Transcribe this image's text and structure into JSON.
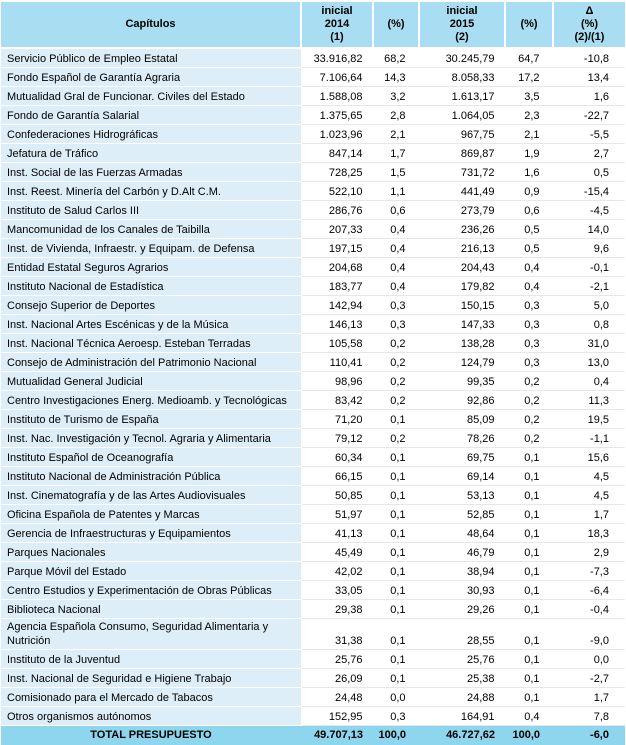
{
  "colors": {
    "header_bg": "#a9def2",
    "name_col_bg": "#ddeef9",
    "total_bg": "#8ed6ee"
  },
  "header": {
    "capitulos": "Capítulos",
    "inicial_2014": "inicial\n2014\n(1)",
    "pct_1": "(%)",
    "inicial_2015": "inicial\n2015\n(2)",
    "pct_2": "(%)",
    "delta": "Δ\n(%)\n(2)/(1)"
  },
  "rows": [
    {
      "name": "Servicio Público de Empleo Estatal",
      "v2014": "33.916,82",
      "p2014": "68,2",
      "v2015": "30.245,79",
      "p2015": "64,7",
      "delta": "-10,8"
    },
    {
      "name": "Fondo Español de Garantía Agraria",
      "v2014": "7.106,64",
      "p2014": "14,3",
      "v2015": "8.058,33",
      "p2015": "17,2",
      "delta": "13,4"
    },
    {
      "name": "Mutualidad Gral de Funcionar. Civiles del Estado",
      "v2014": "1.588,08",
      "p2014": "3,2",
      "v2015": "1.613,17",
      "p2015": "3,5",
      "delta": "1,6"
    },
    {
      "name": "Fondo de Garantía Salarial",
      "v2014": "1.375,65",
      "p2014": "2,8",
      "v2015": "1.064,05",
      "p2015": "2,3",
      "delta": "-22,7"
    },
    {
      "name": "Confederaciones Hidrográficas",
      "v2014": "1.023,96",
      "p2014": "2,1",
      "v2015": "967,75",
      "p2015": "2,1",
      "delta": "-5,5"
    },
    {
      "name": "Jefatura de Tráfico",
      "v2014": "847,14",
      "p2014": "1,7",
      "v2015": "869,87",
      "p2015": "1,9",
      "delta": "2,7"
    },
    {
      "name": "Inst. Social de las Fuerzas Armadas",
      "v2014": "728,25",
      "p2014": "1,5",
      "v2015": "731,72",
      "p2015": "1,6",
      "delta": "0,5"
    },
    {
      "name": "Inst. Reest. Minería del Carbón y D.Alt C.M.",
      "v2014": "522,10",
      "p2014": "1,1",
      "v2015": "441,49",
      "p2015": "0,9",
      "delta": "-15,4"
    },
    {
      "name": "Instituto de Salud Carlos III",
      "v2014": "286,76",
      "p2014": "0,6",
      "v2015": "273,79",
      "p2015": "0,6",
      "delta": "-4,5"
    },
    {
      "name": "Mancomunidad de los Canales de Taibilla",
      "v2014": "207,33",
      "p2014": "0,4",
      "v2015": "236,26",
      "p2015": "0,5",
      "delta": "14,0"
    },
    {
      "name": "Inst. de Vivienda, Infraestr. y Equipam. de Defensa",
      "v2014": "197,15",
      "p2014": "0,4",
      "v2015": "216,13",
      "p2015": "0,5",
      "delta": "9,6"
    },
    {
      "name": "Entidad Estatal Seguros Agrarios",
      "v2014": "204,68",
      "p2014": "0,4",
      "v2015": "204,43",
      "p2015": "0,4",
      "delta": "-0,1"
    },
    {
      "name": "Instituto Nacional de Estadística",
      "v2014": "183,77",
      "p2014": "0,4",
      "v2015": "179,82",
      "p2015": "0,4",
      "delta": "-2,1"
    },
    {
      "name": "Consejo Superior de Deportes",
      "v2014": "142,94",
      "p2014": "0,3",
      "v2015": "150,15",
      "p2015": "0,3",
      "delta": "5,0"
    },
    {
      "name": "Inst. Nacional Artes Escénicas y de la Música",
      "v2014": "146,13",
      "p2014": "0,3",
      "v2015": "147,33",
      "p2015": "0,3",
      "delta": "0,8"
    },
    {
      "name": "Inst. Nacional Técnica Aeroesp. Esteban Terradas",
      "v2014": "105,58",
      "p2014": "0,2",
      "v2015": "138,28",
      "p2015": "0,3",
      "delta": "31,0"
    },
    {
      "name": "Consejo de Administración del Patrimonio Nacional",
      "v2014": "110,41",
      "p2014": "0,2",
      "v2015": "124,79",
      "p2015": "0,3",
      "delta": "13,0"
    },
    {
      "name": "Mutualidad General Judicial",
      "v2014": "98,96",
      "p2014": "0,2",
      "v2015": "99,35",
      "p2015": "0,2",
      "delta": "0,4"
    },
    {
      "name": "Centro Investigaciones Energ. Medioamb. y Tecnológicas",
      "v2014": "83,42",
      "p2014": "0,2",
      "v2015": "92,86",
      "p2015": "0,2",
      "delta": "11,3"
    },
    {
      "name": "Instituto de Turismo de España",
      "v2014": "71,20",
      "p2014": "0,1",
      "v2015": "85,09",
      "p2015": "0,2",
      "delta": "19,5"
    },
    {
      "name": "Inst. Nac. Investigación y Tecnol. Agraria y Alimentaria",
      "v2014": "79,12",
      "p2014": "0,2",
      "v2015": "78,26",
      "p2015": "0,2",
      "delta": "-1,1"
    },
    {
      "name": "Instituto Español de Oceanografía",
      "v2014": "60,34",
      "p2014": "0,1",
      "v2015": "69,75",
      "p2015": "0,1",
      "delta": "15,6"
    },
    {
      "name": "Instituto Nacional de Administración Pública",
      "v2014": "66,15",
      "p2014": "0,1",
      "v2015": "69,14",
      "p2015": "0,1",
      "delta": "4,5"
    },
    {
      "name": "Inst. Cinematografía y de las Artes Audiovisuales",
      "v2014": "50,85",
      "p2014": "0,1",
      "v2015": "53,13",
      "p2015": "0,1",
      "delta": "4,5"
    },
    {
      "name": "Oficina Española de Patentes y Marcas",
      "v2014": "51,97",
      "p2014": "0,1",
      "v2015": "52,85",
      "p2015": "0,1",
      "delta": "1,7"
    },
    {
      "name": "Gerencia de Infraestructuras y Equipamientos",
      "v2014": "41,13",
      "p2014": "0,1",
      "v2015": "48,64",
      "p2015": "0,1",
      "delta": "18,3"
    },
    {
      "name": "Parques Nacionales",
      "v2014": "45,49",
      "p2014": "0,1",
      "v2015": "46,79",
      "p2015": "0,1",
      "delta": "2,9"
    },
    {
      "name": "Parque Móvil del Estado",
      "v2014": "42,02",
      "p2014": "0,1",
      "v2015": "38,94",
      "p2015": "0,1",
      "delta": "-7,3"
    },
    {
      "name": "Centro Estudios y Experimentación de Obras Públicas",
      "v2014": "33,05",
      "p2014": "0,1",
      "v2015": "30,93",
      "p2015": "0,1",
      "delta": "-6,4"
    },
    {
      "name": "Biblioteca Nacional",
      "v2014": "29,38",
      "p2014": "0,1",
      "v2015": "29,26",
      "p2015": "0,1",
      "delta": "-0,4"
    },
    {
      "name": "Agencia Española Consumo, Seguridad Alimentaria y Nutrición",
      "v2014": "31,38",
      "p2014": "0,1",
      "v2015": "28,55",
      "p2015": "0,1",
      "delta": "-9,0"
    },
    {
      "name": "Instituto de la Juventud",
      "v2014": "25,76",
      "p2014": "0,1",
      "v2015": "25,76",
      "p2015": "0,1",
      "delta": "0,0"
    },
    {
      "name": "Inst. Nacional de Seguridad e Higiene Trabajo",
      "v2014": "26,09",
      "p2014": "0,1",
      "v2015": "25,38",
      "p2015": "0,1",
      "delta": "-2,7"
    },
    {
      "name": "Comisionado para el Mercado de Tabacos",
      "v2014": "24,48",
      "p2014": "0,0",
      "v2015": "24,88",
      "p2015": "0,1",
      "delta": "1,7"
    },
    {
      "name": "Otros organismos autónomos",
      "v2014": "152,95",
      "p2014": "0,3",
      "v2015": "164,91",
      "p2015": "0,4",
      "delta": "7,8"
    }
  ],
  "total": {
    "label": "TOTAL PRESUPUESTO",
    "v2014": "49.707,13",
    "p2014": "100,0",
    "v2015": "46.727,62",
    "p2015": "100,0",
    "delta": "-6,0"
  }
}
